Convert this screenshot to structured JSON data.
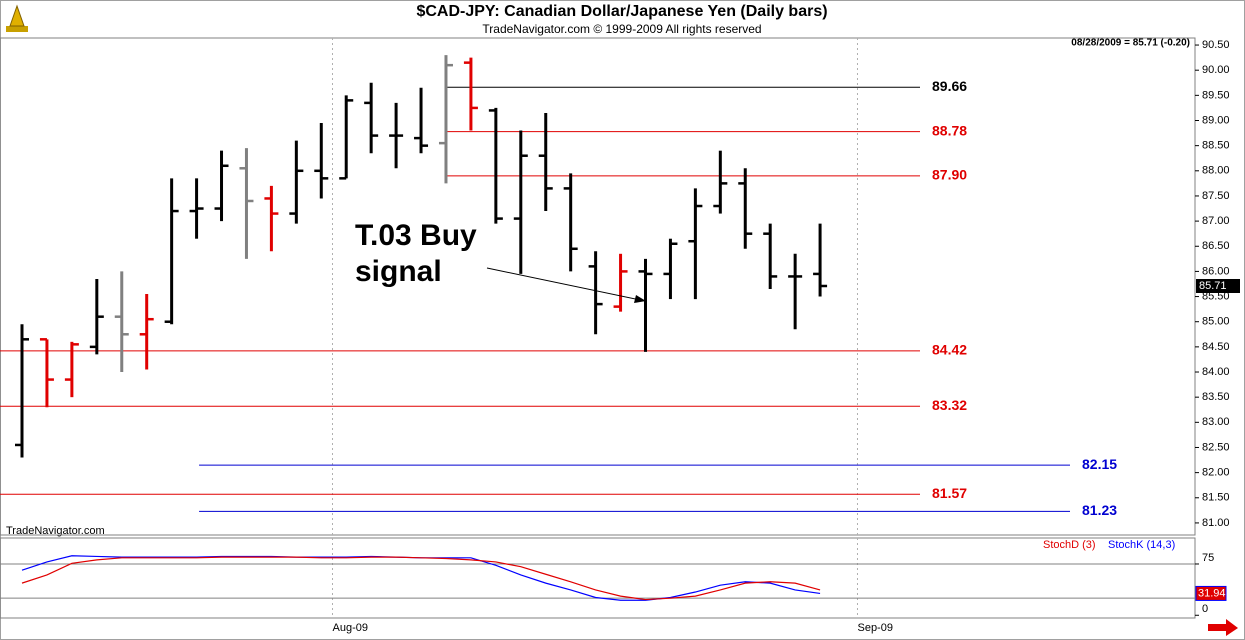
{
  "chart_data": [
    {
      "type": "ohlc",
      "title": "$CAD-JPY:  Canadian Dollar/Japanese Yen  (Daily bars)",
      "subtitle": "TradeNavigator.com © 1999-2009 All rights reserved",
      "watermark": "TradeNavigator.com",
      "header": "08/28/2009 = 85.71 (-0.20)",
      "annotation": [
        "T.03 Buy",
        "signal"
      ],
      "x_labels": [
        "Aug-09",
        "Sep-09"
      ],
      "open": [
        82.55,
        84.65,
        83.85,
        84.5,
        85.1,
        84.75,
        85.0,
        87.2,
        87.25,
        88.05,
        87.45,
        87.15,
        88.0,
        87.85,
        89.35,
        88.7,
        88.65,
        88.55,
        90.15,
        89.2,
        87.05,
        88.3,
        87.65,
        86.1,
        85.3,
        86.0,
        85.95,
        86.6,
        87.3,
        87.75,
        86.75,
        85.9,
        85.95
      ],
      "high": [
        84.95,
        84.65,
        84.6,
        85.85,
        86.0,
        85.55,
        87.85,
        87.85,
        88.4,
        88.45,
        87.7,
        88.6,
        88.95,
        89.5,
        89.75,
        89.35,
        89.65,
        90.3,
        90.25,
        89.25,
        88.8,
        89.15,
        87.95,
        86.4,
        86.35,
        86.25,
        86.65,
        87.65,
        88.4,
        88.05,
        86.95,
        86.35,
        86.95
      ],
      "low": [
        82.3,
        83.3,
        83.5,
        84.35,
        84.0,
        84.05,
        84.95,
        86.65,
        87.0,
        86.25,
        86.4,
        86.95,
        87.45,
        87.85,
        88.35,
        88.05,
        88.35,
        87.75,
        88.8,
        86.95,
        85.95,
        87.2,
        86.0,
        84.75,
        85.2,
        84.4,
        85.45,
        85.45,
        87.15,
        86.45,
        85.65,
        84.85,
        85.5
      ],
      "close": [
        84.65,
        83.85,
        84.55,
        85.1,
        84.75,
        85.05,
        87.2,
        87.25,
        88.1,
        87.4,
        87.15,
        88.0,
        87.85,
        89.4,
        88.7,
        88.7,
        88.5,
        90.1,
        89.25,
        87.05,
        88.3,
        87.65,
        86.45,
        85.35,
        86.0,
        85.95,
        86.55,
        87.3,
        87.75,
        86.75,
        85.9,
        85.9,
        85.71
      ],
      "colors": [
        "#000000",
        "#e00000",
        "#e00000",
        "#000000",
        "#808080",
        "#e00000",
        "#000000",
        "#000000",
        "#000000",
        "#808080",
        "#e00000",
        "#000000",
        "#000000",
        "#000000",
        "#000000",
        "#000000",
        "#000000",
        "#808080",
        "#e00000",
        "#000000",
        "#000000",
        "#000000",
        "#000000",
        "#000000",
        "#e00000",
        "#000000",
        "#000000",
        "#000000",
        "#000000",
        "#000000",
        "#000000",
        "#000000",
        "#000000"
      ],
      "levels": [
        {
          "value": 89.66,
          "label": "89.66",
          "color": "#000000"
        },
        {
          "value": 88.78,
          "label": "88.78",
          "color": "#e00000"
        },
        {
          "value": 87.9,
          "label": "87.90",
          "color": "#e00000"
        },
        {
          "value": 84.42,
          "label": "84.42",
          "color": "#e00000"
        },
        {
          "value": 83.32,
          "label": "83.32",
          "color": "#e00000"
        },
        {
          "value": 82.15,
          "label": "82.15",
          "color": "#0000d0"
        },
        {
          "value": 81.57,
          "label": "81.57",
          "color": "#e00000"
        },
        {
          "value": 81.23,
          "label": "81.23",
          "color": "#0000d0"
        }
      ],
      "ylim": [
        80.76,
        90.64
      ],
      "yticks": [
        {
          "value": 90.5,
          "label": "90.50"
        },
        {
          "value": 90,
          "label": "90.00"
        },
        {
          "value": 89.5,
          "label": "89.50"
        },
        {
          "value": 89,
          "label": "89.00"
        },
        {
          "value": 88.5,
          "label": "88.50"
        },
        {
          "value": 88,
          "label": "88.00"
        },
        {
          "value": 87.5,
          "label": "87.50"
        },
        {
          "value": 87,
          "label": "87.00"
        },
        {
          "value": 86.5,
          "label": "86.50"
        },
        {
          "value": 86,
          "label": "86.00"
        },
        {
          "value": 85.5,
          "label": "85.50"
        },
        {
          "value": 85,
          "label": "85.00"
        },
        {
          "value": 84.5,
          "label": "84.50"
        },
        {
          "value": 84,
          "label": "84.00"
        },
        {
          "value": 83.5,
          "label": "83.50"
        },
        {
          "value": 83,
          "label": "83.00"
        },
        {
          "value": 82.5,
          "label": "82.50"
        },
        {
          "value": 82,
          "label": "82.00"
        },
        {
          "value": 81.5,
          "label": "81.50"
        },
        {
          "value": 81,
          "label": "81.00"
        }
      ]
    },
    {
      "type": "line",
      "series": [
        {
          "name": "StochK (14,3)",
          "color": "#0000ff",
          "values": [
            66,
            78,
            87,
            86,
            85,
            85,
            85,
            85,
            86,
            86,
            86,
            85,
            85,
            85,
            86,
            85,
            84,
            84,
            84,
            73,
            59,
            47,
            37,
            26,
            22,
            22,
            26,
            34,
            44,
            49,
            47,
            37,
            31.94
          ]
        },
        {
          "name": "StochD (3)",
          "color": "#e00000",
          "values": [
            47,
            59,
            76,
            81,
            84,
            84,
            84,
            84,
            85,
            85,
            85,
            85,
            84,
            84,
            85,
            85,
            84,
            83,
            81,
            78,
            71,
            60,
            49,
            37,
            28,
            23,
            25,
            28,
            37,
            47,
            49,
            47,
            37
          ]
        }
      ],
      "ylim": [
        -4,
        113
      ],
      "yticks": [
        0,
        75
      ],
      "levels": [
        25,
        75
      ]
    }
  ]
}
